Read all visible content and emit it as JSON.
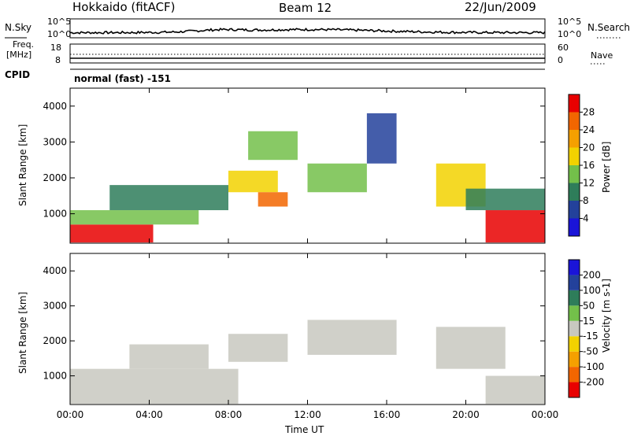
{
  "header": {
    "station": "Hokkaido (fitACF)",
    "beam": "Beam 12",
    "date": "22/Jun/2009"
  },
  "side_labels": {
    "nsky": "N.Sky",
    "nsearch": "N.Search",
    "freq": "Freq.",
    "freq_unit": "[MHz]",
    "nave": "Nave",
    "cpid": "CPID"
  },
  "noise_ticks": {
    "top": "10^5",
    "bottom": "10^0"
  },
  "freq_ticks": {
    "top": "18",
    "bottom": "8"
  },
  "nave_ticks": {
    "top": "60",
    "bottom": "0"
  },
  "cpid_value": "normal (fast) -151",
  "chart_data": [
    {
      "type": "heatmap",
      "name": "power",
      "ylabel": "Slant Range [km]",
      "y_ticks": [
        "1000",
        "2000",
        "3000",
        "4000"
      ],
      "y_tick_values": [
        1000,
        2000,
        3000,
        4000
      ],
      "ylim": [
        180,
        4500
      ],
      "colorbar_label": "Power [dB]",
      "colorbar_ticks": [
        "4",
        "8",
        "12",
        "16",
        "20",
        "24",
        "28"
      ],
      "colorbar_colors": [
        "#1a14d8",
        "#23419b",
        "#2e7d5a",
        "#73c04a",
        "#f2d200",
        "#f5a000",
        "#f26600",
        "#e80000"
      ],
      "regions": [
        {
          "t0": 0.0,
          "t1": 4.2,
          "r0": 200,
          "r1": 700,
          "value": 30
        },
        {
          "t0": 0.0,
          "t1": 6.5,
          "r0": 700,
          "r1": 1100,
          "value": 14
        },
        {
          "t0": 2.0,
          "t1": 8.0,
          "r0": 1100,
          "r1": 1800,
          "value": 10
        },
        {
          "t0": 8.0,
          "t1": 10.5,
          "r0": 1600,
          "r1": 2200,
          "value": 18
        },
        {
          "t0": 9.5,
          "t1": 11.0,
          "r0": 1200,
          "r1": 1600,
          "value": 26
        },
        {
          "t0": 9.0,
          "t1": 11.5,
          "r0": 2500,
          "r1": 3300,
          "value": 12
        },
        {
          "t0": 12.0,
          "t1": 15.0,
          "r0": 1600,
          "r1": 2400,
          "value": 12
        },
        {
          "t0": 15.0,
          "t1": 16.5,
          "r0": 2400,
          "r1": 3800,
          "value": 6
        },
        {
          "t0": 18.5,
          "t1": 21.0,
          "r0": 1200,
          "r1": 2400,
          "value": 16
        },
        {
          "t0": 21.0,
          "t1": 24.0,
          "r0": 200,
          "r1": 1100,
          "value": 30
        },
        {
          "t0": 20.0,
          "t1": 24.0,
          "r0": 1100,
          "r1": 1700,
          "value": 10
        }
      ]
    },
    {
      "type": "heatmap",
      "name": "velocity",
      "ylabel": "Slant Range [km]",
      "y_ticks": [
        "1000",
        "2000",
        "3000",
        "4000"
      ],
      "y_tick_values": [
        1000,
        2000,
        3000,
        4000
      ],
      "ylim": [
        180,
        4500
      ],
      "colorbar_label": "Velocity [m s-1]",
      "colorbar_ticks": [
        "200",
        "100",
        "50",
        "15",
        "-15",
        "-50",
        "-100",
        "-200"
      ],
      "colorbar_colors": [
        "#1a14d8",
        "#23419b",
        "#2e7d5a",
        "#73c04a",
        "#c8c8c0",
        "#f2d200",
        "#f5a000",
        "#f26600",
        "#e80000"
      ],
      "regions": [
        {
          "t0": 0.0,
          "t1": 8.5,
          "r0": 200,
          "r1": 1200,
          "value": 0
        },
        {
          "t0": 3.0,
          "t1": 7.0,
          "r0": 1200,
          "r1": 1900,
          "value": 0
        },
        {
          "t0": 8.0,
          "t1": 11.0,
          "r0": 1400,
          "r1": 2200,
          "value": 0
        },
        {
          "t0": 12.0,
          "t1": 16.5,
          "r0": 1600,
          "r1": 2600,
          "value": 0
        },
        {
          "t0": 18.5,
          "t1": 22.0,
          "r0": 1200,
          "r1": 2400,
          "value": 0
        },
        {
          "t0": 21.0,
          "t1": 24.0,
          "r0": 200,
          "r1": 1000,
          "value": 0
        }
      ]
    }
  ],
  "x_axis": {
    "label": "Time UT",
    "ticks": [
      "00:00",
      "04:00",
      "08:00",
      "12:00",
      "16:00",
      "20:00",
      "00:00"
    ],
    "tick_values": [
      0,
      4,
      8,
      12,
      16,
      20,
      24
    ],
    "xlim": [
      0,
      24
    ]
  },
  "colors": {
    "nsky_line": "#000000",
    "nsearch_line": "#000000"
  }
}
